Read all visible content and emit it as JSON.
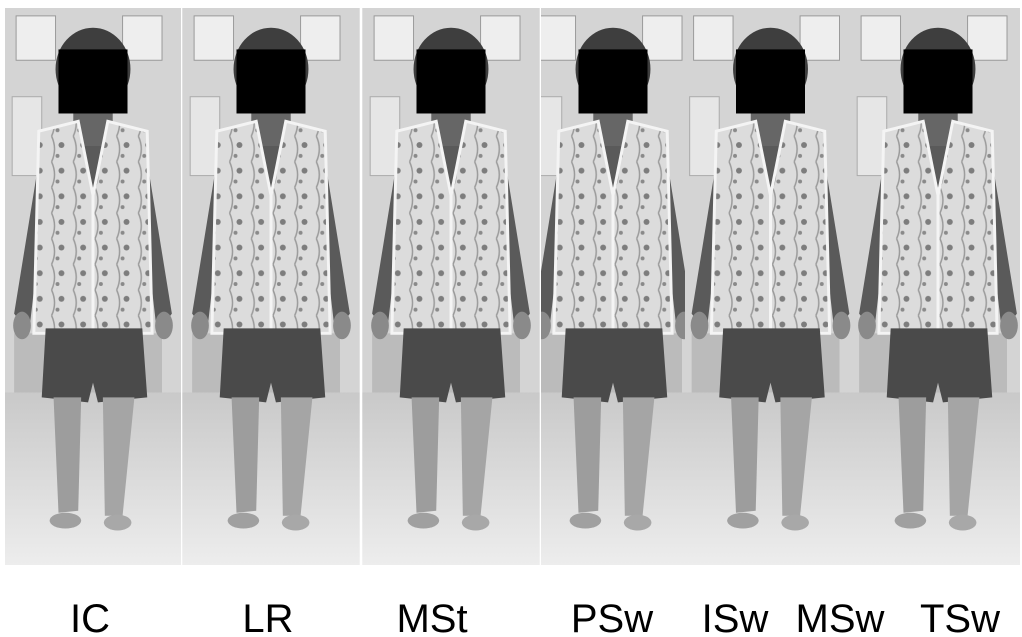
{
  "labels": [
    "IC",
    "LR",
    "MSt",
    "PSw",
    "ISw",
    "MSw",
    "TSw"
  ]
}
